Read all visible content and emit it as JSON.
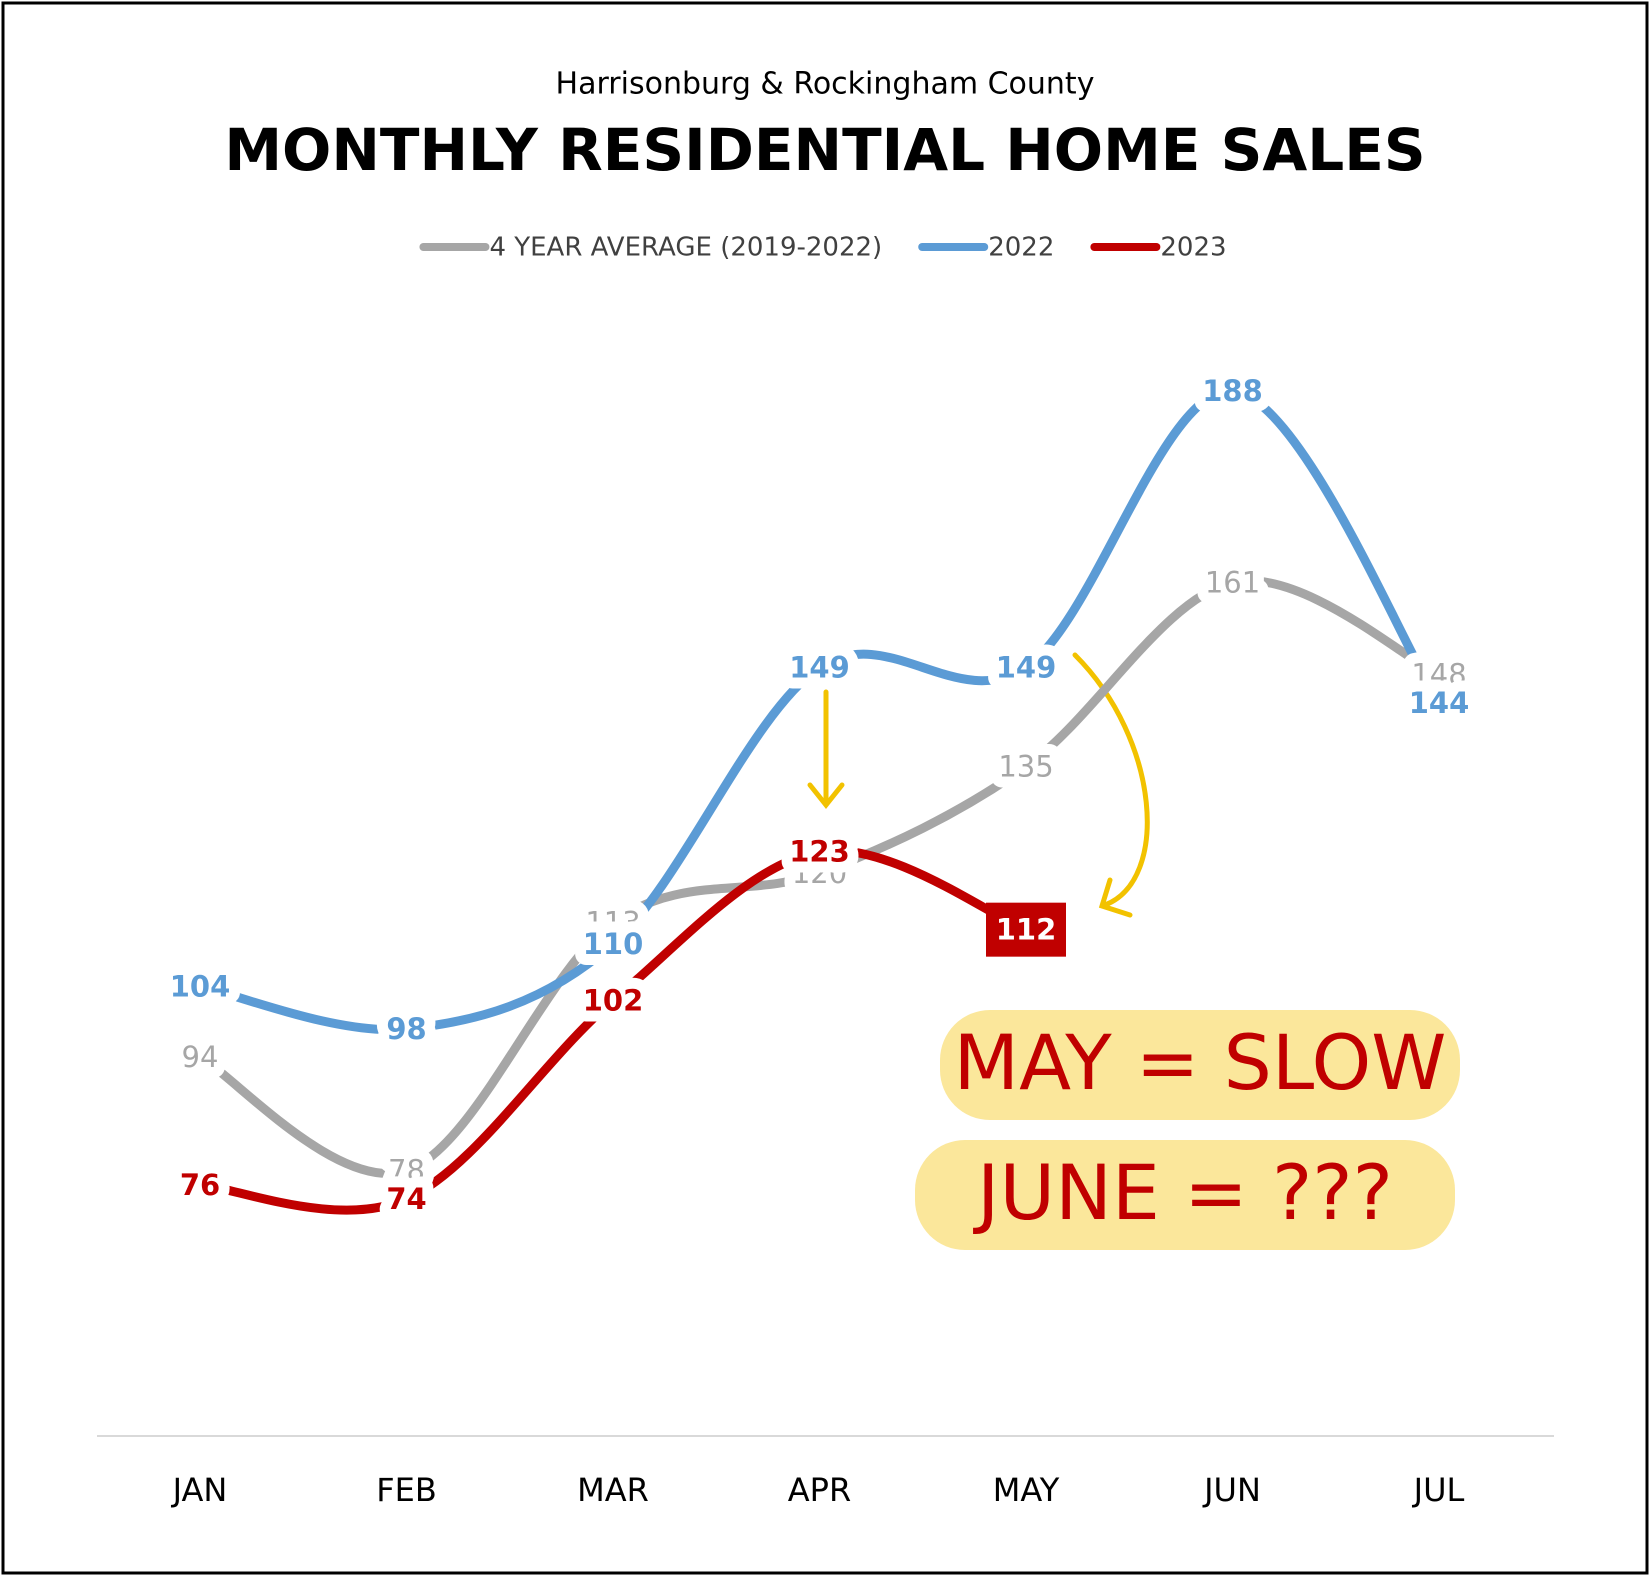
{
  "chart_data": {
    "type": "line",
    "subtitle": "Harrisonburg & Rockingham County",
    "title": "MONTHLY RESIDENTIAL HOME SALES",
    "categories": [
      "JAN",
      "FEB",
      "MAR",
      "APR",
      "MAY",
      "JUN",
      "JUL"
    ],
    "series": [
      {
        "name": "4 YEAR AVERAGE (2019-2022)",
        "color": "#a6a6a6",
        "values": [
          94,
          78,
          113,
          120,
          135,
          161,
          148
        ]
      },
      {
        "name": "2022",
        "color": "#5b9bd5",
        "values": [
          104,
          98,
          110,
          149,
          149,
          188,
          144
        ]
      },
      {
        "name": "2023",
        "color": "#c00000",
        "values": [
          76,
          74,
          102,
          123,
          112,
          null,
          null
        ],
        "highlight_last": true
      }
    ],
    "legend": "top",
    "annotations": [
      "MAY = SLOW",
      "JUNE = ???"
    ]
  }
}
